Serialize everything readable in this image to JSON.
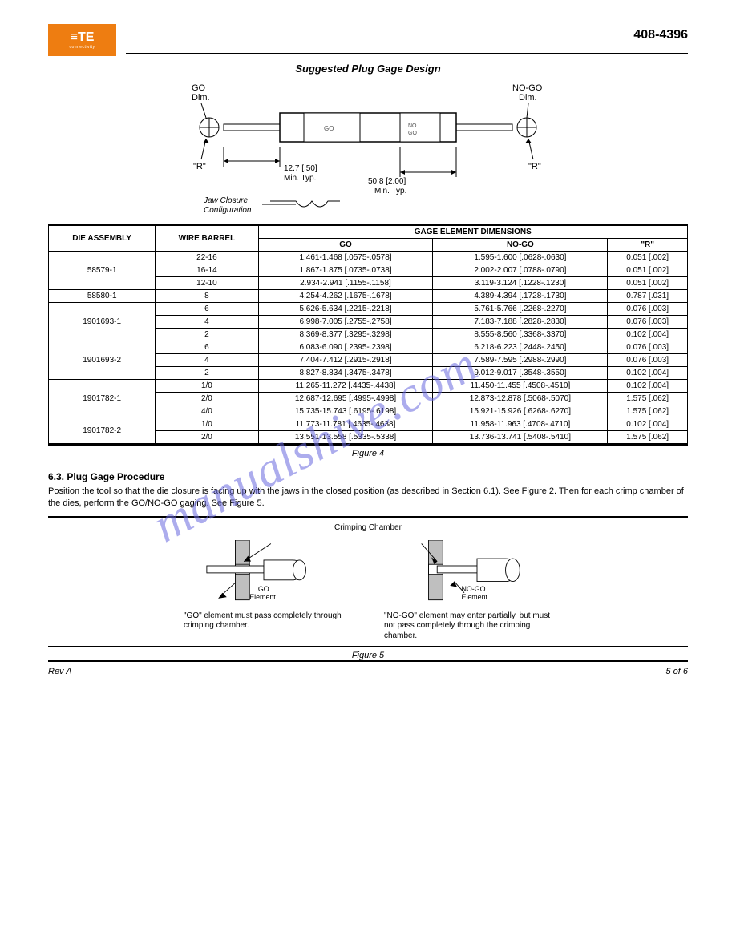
{
  "doc_id": "408-4396",
  "logo": {
    "brand": "≡TE",
    "sub": "connectivity"
  },
  "figure4": {
    "title": "Suggested Plug Gage Design",
    "go_dim_label": "GO\nDim.",
    "nogo_dim_label": "NO-GO\nDim.",
    "r_label": "\"R\"",
    "dim1": "12.7 [.50]\nMin. Typ.",
    "dim2": "50.8 [2.00]\nMin. Typ.",
    "jaw_label": "Jaw Closure\nConfiguration",
    "caption": "Figure 4"
  },
  "table": {
    "headers": {
      "die_assy": "DIE\nASSEMBLY",
      "wire_barrel": "WIRE\nBARREL",
      "gage_members": "GAGE ELEMENT DIMENSIONS",
      "go": "GO",
      "nogo": "NO-GO",
      "r": "\"R\""
    },
    "rows": [
      {
        "die": "58579-1",
        "wb_rows": [
          {
            "wb": "22-16",
            "go": "1.461-1.468 [.0575-.0578]",
            "nogo": "1.595-1.600 [.0628-.0630]",
            "r": "0.051 [.002]"
          },
          {
            "wb": "16-14",
            "go": "1.867-1.875 [.0735-.0738]",
            "nogo": "2.002-2.007 [.0788-.0790]",
            "r": "0.051 [.002]"
          },
          {
            "wb": "12-10",
            "go": "2.934-2.941 [.1155-.1158]",
            "nogo": "3.119-3.124 [.1228-.1230]",
            "r": "0.051 [.002]"
          }
        ]
      },
      {
        "die": "58580-1",
        "wb_rows": [
          {
            "wb": "8",
            "go": "4.254-4.262 [.1675-.1678]",
            "nogo": "4.389-4.394 [.1728-.1730]",
            "r": "0.787 [.031]"
          }
        ]
      },
      {
        "die": "1901693-1",
        "wb_rows": [
          {
            "wb": "6",
            "go": "5.626-5.634 [.2215-.2218]",
            "nogo": "5.761-5.766 [.2268-.2270]",
            "r": "0.076 [.003]"
          },
          {
            "wb": "4",
            "go": "6.998-7.005 [.2755-.2758]",
            "nogo": "7.183-7.188 [.2828-.2830]",
            "r": "0.076 [.003]"
          },
          {
            "wb": "2",
            "go": "8.369-8.377 [.3295-.3298]",
            "nogo": "8.555-8.560 [.3368-.3370]",
            "r": "0.102 [.004]"
          }
        ]
      },
      {
        "die": "1901693-2",
        "wb_rows": [
          {
            "wb": "6",
            "go": "6.083-6.090 [.2395-.2398]",
            "nogo": "6.218-6.223 [.2448-.2450]",
            "r": "0.076 [.003]"
          },
          {
            "wb": "4",
            "go": "7.404-7.412 [.2915-.2918]",
            "nogo": "7.589-7.595 [.2988-.2990]",
            "r": "0.076 [.003]"
          },
          {
            "wb": "2",
            "go": "8.827-8.834 [.3475-.3478]",
            "nogo": "9.012-9.017 [.3548-.3550]",
            "r": "0.102 [.004]"
          }
        ]
      },
      {
        "die": "1901782-1",
        "wb_rows": [
          {
            "wb": "1/0",
            "go": "11.265-11.272 [.4435-.4438]",
            "nogo": "11.450-11.455 [.4508-.4510]",
            "r": "0.102 [.004]"
          },
          {
            "wb": "2/0",
            "go": "12.687-12.695 [.4995-.4998]",
            "nogo": "12.873-12.878 [.5068-.5070]",
            "r": "1.575 [.062]"
          },
          {
            "wb": "4/0",
            "go": "15.735-15.743 [.6195-.6198]",
            "nogo": "15.921-15.926 [.6268-.6270]",
            "r": "1.575 [.062]"
          }
        ]
      },
      {
        "die": "1901782-2",
        "wb_rows": [
          {
            "wb": "1/0",
            "go": "11.773-11.781 [.4635-.4638]",
            "nogo": "11.958-11.963 [.4708-.4710]",
            "r": "0.102 [.004]"
          },
          {
            "wb": "2/0",
            "go": "13.551-13.558 [.5335-.5338]",
            "nogo": "13.736-13.741 [.5408-.5410]",
            "r": "1.575 [.062]"
          }
        ]
      }
    ]
  },
  "section": {
    "heading": "6.3. Plug Gage Procedure",
    "body": "Position the tool so that the die closure is facing up with the jaws in the closed position (as described in Section 6.1). See Figure 2. Then for each crimp chamber of the dies, perform the GO/NO-GO gaging. See Figure 5."
  },
  "figure5": {
    "chamber_label": "Crimping\nChamber",
    "go_elem": "GO\nElement",
    "nogo_elem": "NO-GO\nElement",
    "go_caption": "\"GO\" element must pass completely through crimping chamber.",
    "nogo_caption": "\"NO-GO\" element may enter partially, but must not pass completely through the crimping chamber.",
    "caption": "Figure 5"
  },
  "footer": {
    "rev": "Rev A",
    "page": "5 of 6"
  },
  "watermark": "manualshive.com",
  "colors": {
    "accent": "#ee7d11",
    "watermark": "#6a6ae0"
  }
}
